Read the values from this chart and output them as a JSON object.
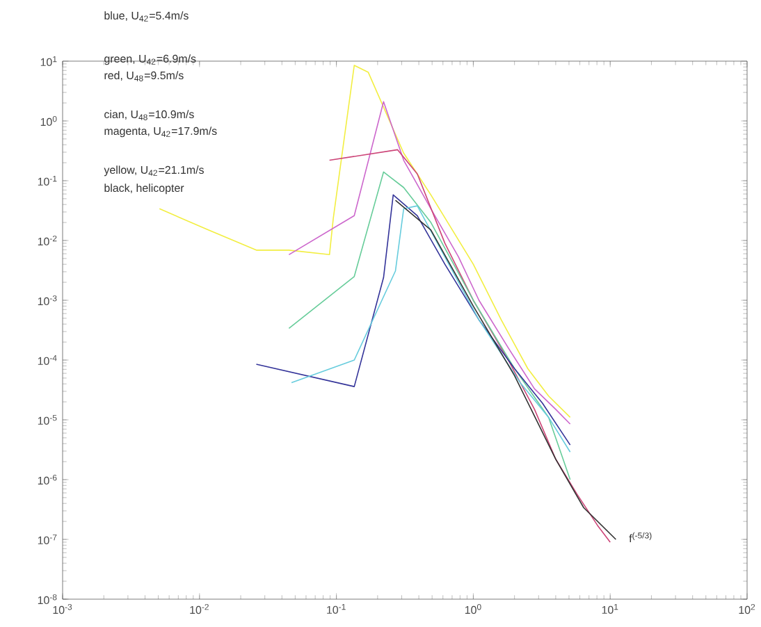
{
  "chart_data": {
    "type": "line",
    "log": "xy",
    "grid": false,
    "xlim": [
      0.001,
      100
    ],
    "ylim": [
      1e-08,
      10
    ],
    "xticks": [
      {
        "value": 0.001,
        "label": "10$^{-3}$"
      },
      {
        "value": 0.01,
        "label": "10$^{-2}$"
      },
      {
        "value": 0.1,
        "label": "10$^{-1}$"
      },
      {
        "value": 1,
        "label": "10$^{0}$"
      },
      {
        "value": 10,
        "label": "10$^{1}$"
      },
      {
        "value": 100,
        "label": "10$^{2}$"
      }
    ],
    "yticks": [
      {
        "value": 1e-08,
        "label": "10$^{-8}$"
      },
      {
        "value": 1e-07,
        "label": "10$^{-7}$"
      },
      {
        "value": 1e-06,
        "label": "10$^{-6}$"
      },
      {
        "value": 1e-05,
        "label": "10$^{-5}$"
      },
      {
        "value": 0.0001,
        "label": "10$^{-4}$"
      },
      {
        "value": 0.001,
        "label": "10$^{-3}$"
      },
      {
        "value": 0.01,
        "label": "10$^{-2}$"
      },
      {
        "value": 0.1,
        "label": "10$^{-1}$"
      },
      {
        "value": 1,
        "label": "10$^{0}$"
      },
      {
        "value": 10,
        "label": "10$^{1}$"
      }
    ],
    "series": [
      {
        "color": "#f2ee40",
        "x": [
          0.0051,
          0.0116,
          0.026,
          0.045,
          0.089,
          0.095,
          0.135,
          0.171,
          0.31,
          0.49,
          1.0,
          1.6,
          2.5,
          3.55,
          5.1
        ],
        "values": [
          0.034,
          0.015,
          0.0069,
          0.0069,
          0.0058,
          0.024,
          8.5,
          6.5,
          0.29,
          0.058,
          0.004,
          0.00047,
          7.2e-05,
          2.5e-05,
          1.1e-05
        ]
      },
      {
        "color": "#cc66cc",
        "x": [
          0.045,
          0.135,
          0.221,
          0.31,
          0.49,
          0.78,
          1.1,
          1.8,
          2.8,
          4.0,
          5.1
        ],
        "values": [
          0.0058,
          0.026,
          2.1,
          0.22,
          0.034,
          0.0053,
          0.001,
          0.00016,
          3.3e-05,
          1.5e-05,
          8.5e-06
        ]
      },
      {
        "color": "#cc4477",
        "x": [
          0.089,
          0.28,
          0.39,
          0.62,
          1.0,
          1.8,
          2.8,
          4.0,
          5.7,
          8.1,
          10
        ],
        "values": [
          0.22,
          0.33,
          0.13,
          0.009,
          0.001,
          0.0001,
          1.5e-05,
          2.2e-06,
          5.8e-07,
          1.7e-07,
          9e-08
        ]
      },
      {
        "color": "#66cc99",
        "x": [
          0.045,
          0.135,
          0.221,
          0.31,
          0.49,
          1.0,
          2.0,
          3.55,
          5.1
        ],
        "values": [
          0.00034,
          0.0025,
          0.14,
          0.077,
          0.02,
          0.001,
          7.2e-05,
          1.1e-05,
          1e-06
        ]
      },
      {
        "color": "#333399",
        "x": [
          0.026,
          0.135,
          0.221,
          0.26,
          0.39,
          0.62,
          1.1,
          2.0,
          3.2,
          5.1
        ],
        "values": [
          8.5e-05,
          3.6e-05,
          0.0024,
          0.058,
          0.026,
          0.004,
          0.00047,
          7.2e-05,
          1.9e-05,
          3.8e-06
        ]
      },
      {
        "color": "#66ccdd",
        "x": [
          0.047,
          0.135,
          0.27,
          0.31,
          0.39,
          0.62,
          1.1,
          2.2,
          3.55,
          5.1
        ],
        "values": [
          4.2e-05,
          0.0001,
          0.0031,
          0.034,
          0.038,
          0.0053,
          0.00047,
          4.2e-05,
          1.1e-05,
          2.9e-06
        ]
      },
      {
        "color": "#333333",
        "x": [
          0.27,
          0.49,
          1.0,
          2.0,
          4.0,
          6.4,
          11
        ],
        "values": [
          0.047,
          0.015,
          0.0008,
          5.5e-05,
          2.2e-06,
          3.4e-07,
          1e-07
        ]
      }
    ],
    "annotations": [
      "blue, U$_{42}$=5.4m/s",
      "green, U$_{42}$=6.9m/s",
      "red, U$_{48}$=9.5m/s",
      "cian, U$_{48}$=10.9m/s",
      "magenta, U$_{42}$=17.9m/s",
      "yellow, U$_{42}$=21.1m/s",
      "black, helicopter",
      "f$^{(-5/3)}$"
    ]
  }
}
